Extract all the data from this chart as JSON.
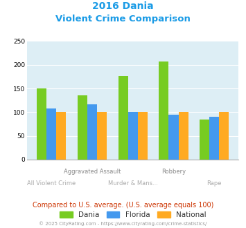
{
  "title_line1": "2016 Dania",
  "title_line2": "Violent Crime Comparison",
  "title_color": "#1a9be6",
  "dania": [
    150,
    136,
    177,
    207,
    85
  ],
  "florida": [
    108,
    116,
    100,
    95,
    91
  ],
  "national": [
    100,
    100,
    100,
    100,
    100
  ],
  "dania_color": "#77cc22",
  "florida_color": "#4499ee",
  "national_color": "#ffaa22",
  "ylim": [
    0,
    250
  ],
  "yticks": [
    0,
    50,
    100,
    150,
    200,
    250
  ],
  "plot_bg": "#ddeef5",
  "row1_labels": [
    "",
    "Aggravated Assault",
    "",
    "Robbery",
    ""
  ],
  "row2_labels": [
    "All Violent Crime",
    "",
    "Murder & Mans...",
    "",
    "Rape"
  ],
  "footer_text": "Compared to U.S. average. (U.S. average equals 100)",
  "footer_color": "#cc3300",
  "copyright_text": "© 2025 CityRating.com - https://www.cityrating.com/crime-statistics/",
  "copyright_color": "#999999",
  "legend_labels": [
    "Dania",
    "Florida",
    "National"
  ],
  "label_color_top": "#aaaaaa",
  "label_color_bottom": "#bbbbbb"
}
